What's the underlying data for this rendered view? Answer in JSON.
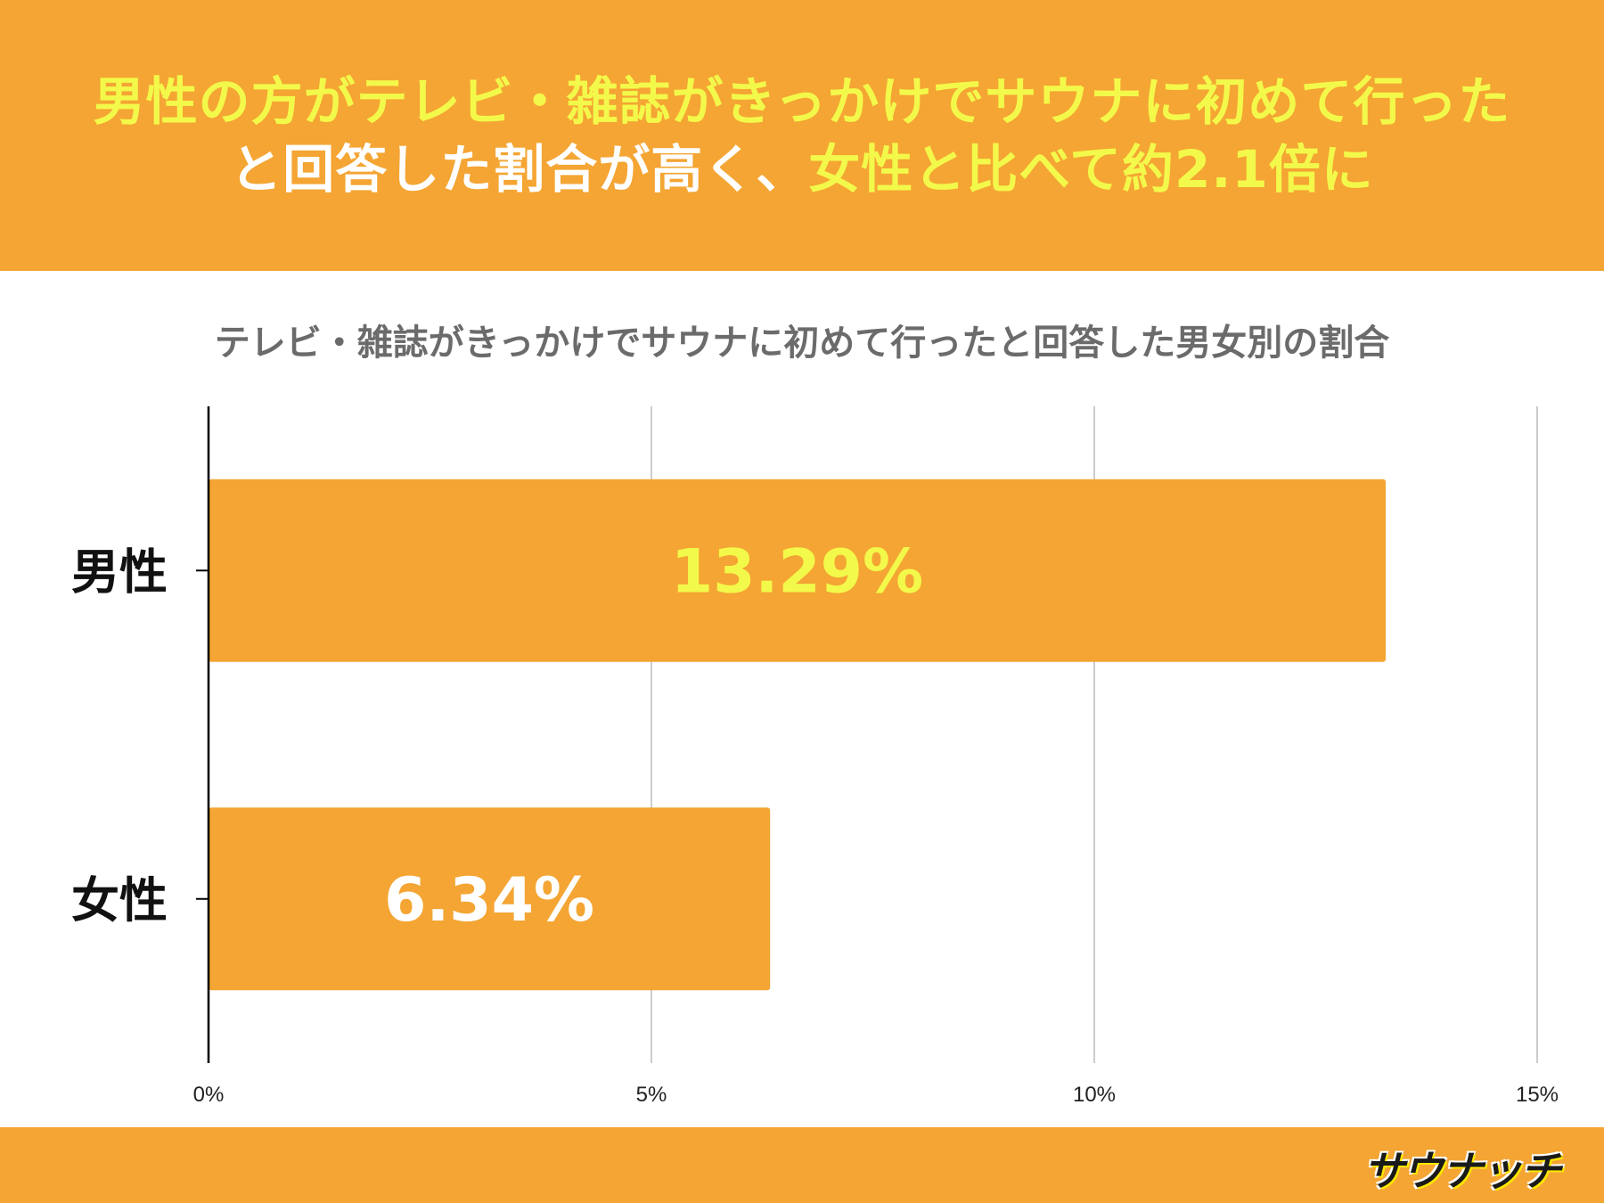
{
  "header": {
    "line1": [
      {
        "text": "男性の方がテレビ・雑誌がきっかけでサウナに初めて行った",
        "tone": "hl"
      }
    ],
    "line2": [
      {
        "text": "と回答した割合が高く、",
        "tone": "wt"
      },
      {
        "text": "女性と比べて約2.1倍に",
        "tone": "hl"
      }
    ]
  },
  "colors": {
    "accent": "#f4a533",
    "highlight_text": "#f3f94a",
    "white": "#ffffff",
    "axis": "#000000",
    "grid": "#cccccc"
  },
  "chart_data": {
    "type": "bar",
    "orientation": "horizontal",
    "title": "テレビ・雑誌がきっかけでサウナに初めて行ったと回答した男女別の割合",
    "categories": [
      "男性",
      "女性"
    ],
    "values": [
      13.29,
      6.34
    ],
    "data_labels": [
      "13.29%",
      "6.34%"
    ],
    "data_label_colors": [
      "#f3f94a",
      "#ffffff"
    ],
    "bar_color": "#f4a533",
    "xlim": [
      0,
      15
    ],
    "xticks": [
      0,
      5,
      10,
      15
    ],
    "xtick_labels": [
      "0%",
      "5%",
      "10%",
      "15%"
    ],
    "grid": true,
    "legend": "none"
  },
  "footer": {
    "logo_text": "サウナッチ"
  }
}
